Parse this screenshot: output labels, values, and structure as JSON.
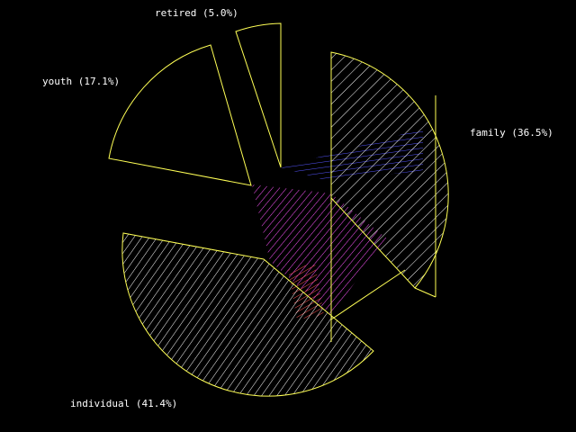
{
  "chart_data": {
    "type": "pie",
    "style": "3d-exploded",
    "slices": [
      {
        "label": "family (36.5%)",
        "category": "family",
        "percent": 36.5,
        "hatched": true,
        "exploded": true
      },
      {
        "label": "individual (41.4%)",
        "category": "individual",
        "percent": 41.4,
        "hatched": true,
        "exploded": true
      },
      {
        "label": "youth (17.1%)",
        "category": "youth",
        "percent": 17.1,
        "hatched": false,
        "exploded": true
      },
      {
        "label": "retired (5.0%)",
        "category": "retired",
        "percent": 5.0,
        "hatched": false,
        "exploded": true
      }
    ],
    "colors": {
      "background": "#000000",
      "outline": "#ffff55",
      "hatch": "#ffffff",
      "label": "#ffffff",
      "side_family": "#5555ff",
      "side_individual": "#ff55ff",
      "side_inner": "#ff5555"
    }
  }
}
